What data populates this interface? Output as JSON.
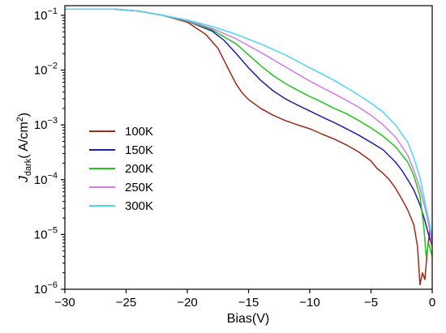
{
  "chart_data": {
    "type": "line",
    "title": "",
    "xlabel": "Bias(V)",
    "ylabel_main": "J",
    "ylabel_sub": "dark",
    "ylabel_unit": "( A/cm",
    "ylabel_unit_sup": "2",
    "ylabel_close": ")",
    "y_scale": "log",
    "xlim": [
      -30,
      0
    ],
    "ylim": [
      1e-06,
      0.15
    ],
    "x_ticks": [
      {
        "value": -30,
        "label": "−30"
      },
      {
        "value": -25,
        "label": "−25"
      },
      {
        "value": -20,
        "label": "−20"
      },
      {
        "value": -15,
        "label": "−15"
      },
      {
        "value": -10,
        "label": "−10"
      },
      {
        "value": -5,
        "label": "−5"
      },
      {
        "value": 0,
        "label": "0"
      }
    ],
    "y_ticks": [
      {
        "value": 1e-06,
        "base": "10",
        "exp": "−6"
      },
      {
        "value": 1e-05,
        "base": "10",
        "exp": "−5"
      },
      {
        "value": 0.0001,
        "base": "10",
        "exp": "−4"
      },
      {
        "value": 0.001,
        "base": "10",
        "exp": "−3"
      },
      {
        "value": 0.01,
        "base": "10",
        "exp": "−2"
      },
      {
        "value": 0.1,
        "base": "10",
        "exp": "−1"
      }
    ],
    "grid": false,
    "legend_position": "left",
    "series": [
      {
        "name": "100K",
        "color": "#9b2a1a",
        "x": [
          -30,
          -26,
          -24,
          -22,
          -20,
          -18.5,
          -17.5,
          -17,
          -16.5,
          -16,
          -15.5,
          -15,
          -14,
          -13,
          -12,
          -11,
          -10,
          -9,
          -8,
          -7,
          -6,
          -5,
          -4.5,
          -4,
          -3.5,
          -3,
          -2.5,
          -2,
          -1.5,
          -1.2,
          -1.0,
          -0.8,
          -0.6,
          -0.4,
          -0.2,
          0
        ],
        "y": [
          0.13,
          0.13,
          0.12,
          0.1,
          0.075,
          0.045,
          0.025,
          0.015,
          0.009,
          0.0055,
          0.0038,
          0.0029,
          0.002,
          0.0015,
          0.0012,
          0.001,
          0.00085,
          0.00068,
          0.00055,
          0.00043,
          0.00032,
          0.00022,
          0.00016,
          0.00013,
          0.0001,
          7e-05,
          4.5e-05,
          2.8e-05,
          1.5e-05,
          6e-06,
          1.2e-06,
          2e-06,
          1.5e-06,
          5e-06,
          1.2e-05,
          8e-06
        ]
      },
      {
        "name": "150K",
        "color": "#1a23a0",
        "x": [
          -30,
          -26,
          -24,
          -22,
          -20,
          -18,
          -17,
          -16,
          -15,
          -14,
          -13,
          -12,
          -11,
          -10,
          -9,
          -8,
          -7,
          -6,
          -5,
          -4,
          -3,
          -2.5,
          -2,
          -1.5,
          -1.0,
          -0.6,
          -0.3,
          0
        ],
        "y": [
          0.13,
          0.13,
          0.12,
          0.1,
          0.078,
          0.052,
          0.035,
          0.02,
          0.011,
          0.0065,
          0.0042,
          0.003,
          0.0023,
          0.0018,
          0.0014,
          0.0011,
          0.00085,
          0.00065,
          0.00048,
          0.00035,
          0.00021,
          0.00015,
          0.0001,
          6.5e-05,
          3.5e-05,
          1.8e-05,
          1e-05,
          6e-06
        ]
      },
      {
        "name": "200K",
        "color": "#22c41e",
        "x": [
          -30,
          -26,
          -24,
          -22,
          -20,
          -18,
          -16,
          -15,
          -14,
          -13,
          -12,
          -11,
          -10,
          -9,
          -8,
          -7,
          -6,
          -5,
          -4,
          -3,
          -2,
          -1.5,
          -1.0,
          -0.7,
          -0.5,
          -0.3,
          0
        ],
        "y": [
          0.13,
          0.13,
          0.12,
          0.1,
          0.078,
          0.055,
          0.03,
          0.019,
          0.012,
          0.008,
          0.0057,
          0.0043,
          0.0033,
          0.0026,
          0.002,
          0.0016,
          0.0012,
          0.00088,
          0.00062,
          0.0004,
          0.00021,
          0.00012,
          5e-05,
          1.5e-05,
          4e-06,
          7e-06,
          4e-06
        ]
      },
      {
        "name": "250K",
        "color": "#d27be8",
        "x": [
          -30,
          -26,
          -24,
          -22,
          -20,
          -18,
          -16,
          -14,
          -12,
          -11,
          -10,
          -9,
          -8,
          -7,
          -6,
          -5,
          -4,
          -3,
          -2,
          -1.5,
          -1.0,
          -0.5,
          -0.2,
          0
        ],
        "y": [
          0.13,
          0.13,
          0.12,
          0.1,
          0.08,
          0.058,
          0.037,
          0.021,
          0.0115,
          0.0085,
          0.0063,
          0.0048,
          0.0037,
          0.0028,
          0.0021,
          0.0015,
          0.001,
          0.0006,
          0.00028,
          0.00015,
          7e-05,
          2.5e-05,
          1.2e-05,
          6e-06
        ]
      },
      {
        "name": "300K",
        "color": "#4fd4f2",
        "x": [
          -30,
          -26,
          -24,
          -22,
          -20,
          -18,
          -16,
          -14,
          -12,
          -10,
          -9,
          -8,
          -7,
          -6,
          -5,
          -4,
          -3,
          -2,
          -1.5,
          -1.0,
          -0.5,
          -0.2,
          0
        ],
        "y": [
          0.13,
          0.13,
          0.12,
          0.1,
          0.082,
          0.063,
          0.045,
          0.03,
          0.019,
          0.011,
          0.0085,
          0.0065,
          0.0048,
          0.0035,
          0.0025,
          0.0017,
          0.001,
          0.00048,
          0.00025,
          0.00011,
          3e-05,
          1.5e-05,
          9e-06
        ]
      }
    ]
  }
}
